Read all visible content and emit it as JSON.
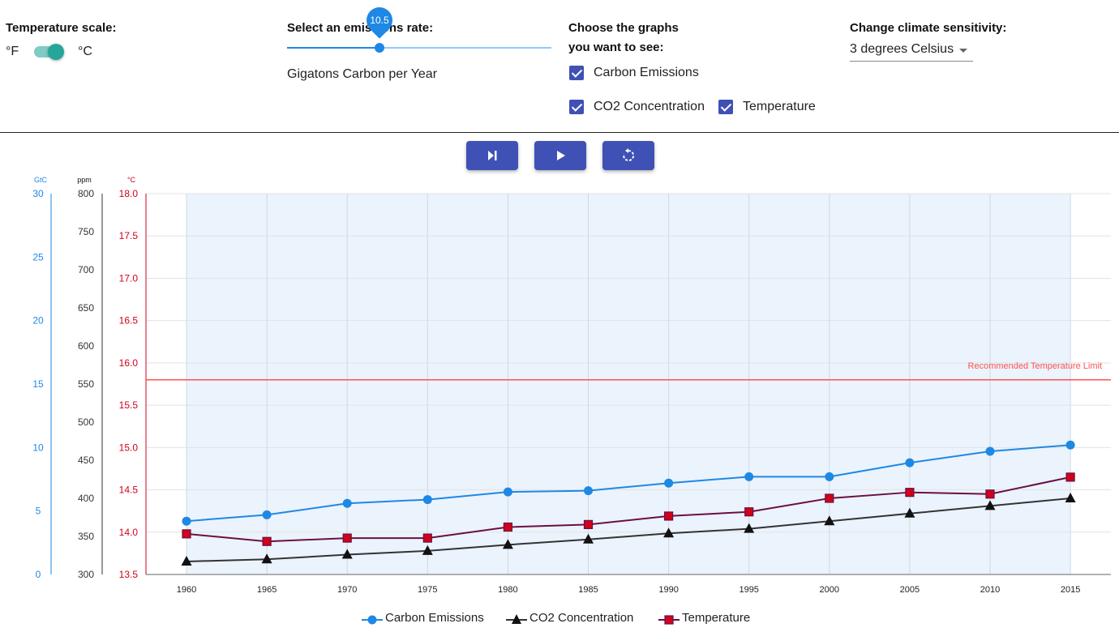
{
  "temperature_scale": {
    "title": "Temperature scale:",
    "left_label": "°F",
    "right_label": "°C",
    "selected": "°C"
  },
  "emissions": {
    "title": "Select an emissions rate:",
    "value": "10.5",
    "value_fraction": 0.35,
    "unit_label": "Gigatons Carbon per Year"
  },
  "graphs": {
    "title_line1": "Choose the graphs",
    "title_line2": "you want to see:",
    "options": [
      {
        "label": "Carbon Emissions",
        "checked": true
      },
      {
        "label": "CO2 Concentration",
        "checked": true
      },
      {
        "label": "Temperature",
        "checked": true
      }
    ]
  },
  "sensitivity": {
    "title": "Change climate sensitivity:",
    "selected": "3 degrees Celsius"
  },
  "buttons": [
    {
      "name": "step",
      "icon": "skip-next-icon"
    },
    {
      "name": "play",
      "icon": "play-icon"
    },
    {
      "name": "reset",
      "icon": "restart-icon"
    }
  ],
  "colors": {
    "emissions": "#1e88e5",
    "co2": "#333333",
    "temperature": "#6a0f45",
    "temperature_marker": "#d0021b",
    "temp_axis": "#d0021b",
    "limit_line": "#ff5252",
    "accent": "#3f51b5",
    "plot_bg": "#ebf3fc"
  },
  "chart_data": {
    "type": "line",
    "x": [
      1960,
      1965,
      1970,
      1975,
      1980,
      1985,
      1990,
      1995,
      2000,
      2005,
      2010,
      2015
    ],
    "axes": {
      "gtc": {
        "unit": "GtC",
        "ylim": [
          0,
          30
        ],
        "ticks": [
          0,
          5,
          10,
          15,
          20,
          25,
          30
        ]
      },
      "ppm": {
        "unit": "ppm",
        "ylim": [
          300,
          800
        ],
        "ticks": [
          300,
          350,
          400,
          450,
          500,
          550,
          600,
          650,
          700,
          750,
          800
        ]
      },
      "celsius": {
        "unit": "°C",
        "ylim": [
          13.5,
          18.0
        ],
        "ticks": [
          "13.5",
          "14.0",
          "14.5",
          "15.0",
          "15.5",
          "16.0",
          "16.5",
          "17.0",
          "17.5",
          "18.0"
        ]
      }
    },
    "series": [
      {
        "name": "Carbon Emissions",
        "axis": "gtc",
        "marker": "circle",
        "values": [
          4.2,
          4.7,
          5.6,
          5.9,
          6.5,
          6.6,
          7.2,
          7.7,
          7.7,
          8.8,
          9.7,
          10.2
        ]
      },
      {
        "name": "CO2 Concentration",
        "axis": "ppm",
        "marker": "triangle",
        "values": [
          317,
          320,
          326,
          331,
          339,
          346,
          354,
          360,
          370,
          380,
          390,
          400
        ]
      },
      {
        "name": "Temperature",
        "axis": "celsius",
        "marker": "square",
        "values": [
          13.98,
          13.89,
          13.93,
          13.93,
          14.06,
          14.09,
          14.19,
          14.24,
          14.4,
          14.47,
          14.45,
          14.65
        ]
      }
    ],
    "reference_line": {
      "label": "Recommended Temperature Limit",
      "axis": "celsius",
      "value": 15.8
    },
    "grid": true,
    "legend": "bottom-center"
  }
}
